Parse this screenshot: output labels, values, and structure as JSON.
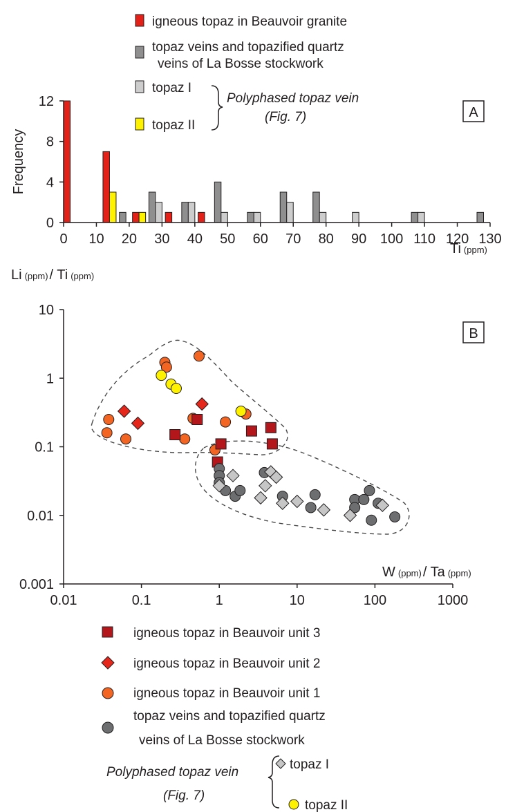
{
  "chart_data": [
    {
      "type": "bar",
      "panel_label": "A",
      "ylabel": "Frequency",
      "xlabel": "Ti",
      "xlabel_unit": "(ppm)",
      "xlim": [
        0,
        130
      ],
      "ylim": [
        0,
        12
      ],
      "xticks": [
        0,
        10,
        20,
        30,
        40,
        50,
        60,
        70,
        80,
        90,
        100,
        110,
        120,
        130
      ],
      "yticks": [
        0,
        4,
        8,
        12
      ],
      "legend": [
        {
          "label": "igneous topaz in Beauvoir granite",
          "color": "#e32119"
        },
        {
          "label": "topaz veins and topazified quartz",
          "label2": "veins of La Bosse stockwork",
          "color": "#8f8f90"
        },
        {
          "label": "topaz I",
          "color": "#cdcdcd"
        },
        {
          "label": "topaz II",
          "color": "#fff200"
        }
      ],
      "bracket_note": "Polyphased topaz vein",
      "bracket_ref": "(Fig. 7)",
      "series": [
        {
          "name": "igneous topaz in Beauvoir granite",
          "color": "#e32119",
          "points": [
            [
              1,
              12
            ],
            [
              13,
              7
            ],
            [
              22,
              1
            ],
            [
              32,
              1
            ],
            [
              42,
              1
            ]
          ]
        },
        {
          "name": "topaz veins and topazified quartz veins of La Bosse stockwork",
          "color": "#8f8f90",
          "points": [
            [
              18,
              1
            ],
            [
              27,
              3
            ],
            [
              37,
              2
            ],
            [
              47,
              4
            ],
            [
              57,
              1
            ],
            [
              67,
              3
            ],
            [
              77,
              3
            ],
            [
              107,
              1
            ],
            [
              127,
              1
            ]
          ]
        },
        {
          "name": "topaz I",
          "color": "#cdcdcd",
          "points": [
            [
              29,
              2
            ],
            [
              39,
              2
            ],
            [
              49,
              1
            ],
            [
              59,
              1
            ],
            [
              69,
              2
            ],
            [
              79,
              1
            ],
            [
              89,
              1
            ],
            [
              109,
              1
            ]
          ]
        },
        {
          "name": "topaz II",
          "color": "#fff200",
          "points": [
            [
              15,
              3
            ],
            [
              24,
              1
            ]
          ]
        }
      ]
    },
    {
      "type": "scatter",
      "panel_label": "B",
      "ylabel": "Li",
      "ylabel_mid": "/ Ti",
      "xlabel": "W",
      "xlabel_mid": "/ Ta",
      "unit": "(ppm)",
      "xscale": "log",
      "yscale": "log",
      "xlim": [
        0.01,
        1000
      ],
      "ylim": [
        0.001,
        10
      ],
      "xticks": [
        "0.01",
        "0.1",
        "1",
        "10",
        "100",
        "1000"
      ],
      "yticks": [
        "0.001",
        "0.01",
        "0.1",
        "1",
        "10"
      ],
      "legend": [
        {
          "label": "igneous topaz in Beauvoir unit 3",
          "marker": "square",
          "color": "#b3161b"
        },
        {
          "label": "igneous topaz in Beauvoir unit 2",
          "marker": "diamond",
          "color": "#e5261b"
        },
        {
          "label": "igneous topaz in Beauvoir unit 1",
          "marker": "circle",
          "color": "#f26522"
        },
        {
          "label": "topaz veins and topazified quartz",
          "label2": "veins of La Bosse stockwork",
          "marker": "circle",
          "color": "#6d6e70"
        },
        {
          "label": "topaz I",
          "marker": "diamond",
          "color": "#c6c6c6"
        },
        {
          "label": "topaz II",
          "marker": "circle",
          "color": "#fff200"
        }
      ],
      "bracket_note": "Polyphased topaz vein",
      "bracket_ref": "(Fig. 7)",
      "series": [
        {
          "name": "igneous topaz in Beauvoir unit 1",
          "marker": "circle",
          "color": "#f26522",
          "points": [
            [
              0.036,
              0.16
            ],
            [
              0.038,
              0.25
            ],
            [
              0.063,
              0.13
            ],
            [
              0.2,
              1.7
            ],
            [
              0.21,
              1.45
            ],
            [
              0.46,
              0.26
            ],
            [
              0.36,
              0.13
            ],
            [
              0.55,
              2.1
            ],
            [
              1.2,
              0.23
            ],
            [
              2.2,
              0.3
            ],
            [
              0.88,
              0.09
            ]
          ]
        },
        {
          "name": "igneous topaz in Beauvoir unit 2",
          "marker": "diamond",
          "color": "#e5261b",
          "points": [
            [
              0.06,
              0.33
            ],
            [
              0.09,
              0.22
            ],
            [
              0.6,
              0.42
            ]
          ]
        },
        {
          "name": "igneous topaz in Beauvoir unit 3",
          "marker": "square",
          "color": "#b3161b",
          "points": [
            [
              0.27,
              0.15
            ],
            [
              0.52,
              0.25
            ],
            [
              1.05,
              0.11
            ],
            [
              2.6,
              0.17
            ],
            [
              4.6,
              0.19
            ],
            [
              4.8,
              0.11
            ],
            [
              0.95,
              0.06
            ]
          ]
        },
        {
          "name": "topaz veins and topazified quartz veins of La Bosse stockwork",
          "marker": "circle",
          "color": "#6d6e70",
          "points": [
            [
              1.0,
              0.048
            ],
            [
              1.0,
              0.038
            ],
            [
              1.0,
              0.03
            ],
            [
              1.2,
              0.023
            ],
            [
              1.6,
              0.019
            ],
            [
              1.85,
              0.023
            ],
            [
              3.8,
              0.042
            ],
            [
              6.5,
              0.019
            ],
            [
              15,
              0.013
            ],
            [
              17,
              0.02
            ],
            [
              55,
              0.017
            ],
            [
              55,
              0.013
            ],
            [
              72,
              0.017
            ],
            [
              85,
              0.023
            ],
            [
              90,
              0.0085
            ],
            [
              110,
              0.015
            ],
            [
              180,
              0.0095
            ]
          ]
        },
        {
          "name": "topaz I",
          "marker": "diamond",
          "color": "#c6c6c6",
          "points": [
            [
              1.0,
              0.027
            ],
            [
              1.5,
              0.038
            ],
            [
              3.4,
              0.018
            ],
            [
              3.9,
              0.027
            ],
            [
              4.6,
              0.043
            ],
            [
              5.4,
              0.036
            ],
            [
              6.5,
              0.015
            ],
            [
              10,
              0.016
            ],
            [
              22,
              0.012
            ],
            [
              48,
              0.01
            ],
            [
              125,
              0.014
            ]
          ]
        },
        {
          "name": "topaz II",
          "marker": "circle",
          "color": "#fff200",
          "points": [
            [
              0.18,
              1.1
            ],
            [
              0.24,
              0.82
            ],
            [
              0.28,
              0.71
            ],
            [
              1.9,
              0.33
            ]
          ]
        }
      ]
    }
  ]
}
